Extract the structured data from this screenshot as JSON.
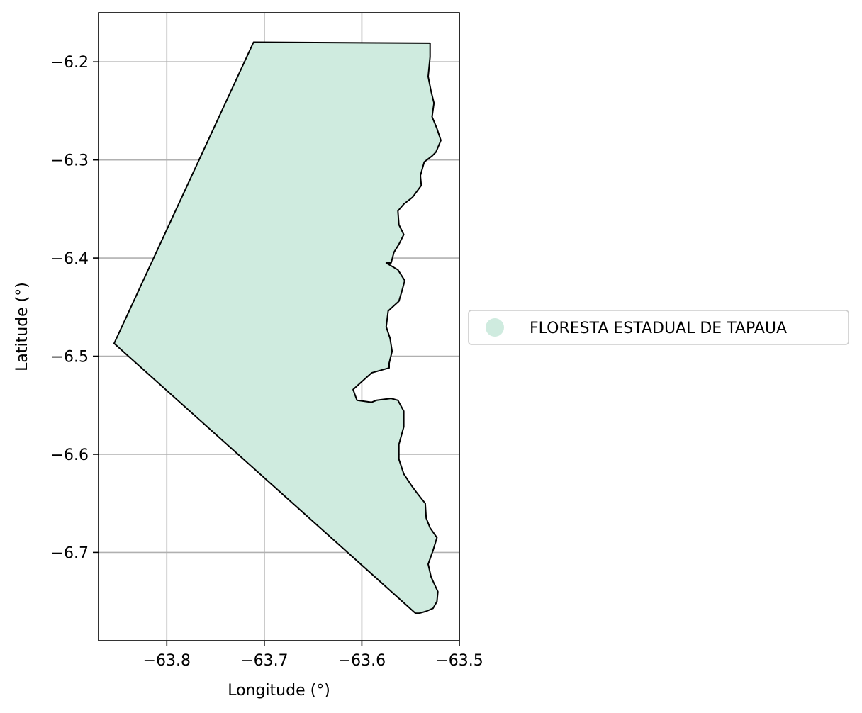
{
  "chart_data": {
    "type": "map",
    "xlabel": "Longitude (°)",
    "ylabel": "Latitude (°)",
    "xlim": [
      -63.87,
      -63.5
    ],
    "ylim": [
      -6.79,
      -6.15
    ],
    "grid": true,
    "x_ticks": [
      {
        "value": -63.8,
        "label": "−63.8"
      },
      {
        "value": -63.7,
        "label": "−63.7"
      },
      {
        "value": -63.6,
        "label": "−63.6"
      },
      {
        "value": -63.5,
        "label": "−63.5"
      }
    ],
    "y_ticks": [
      {
        "value": -6.2,
        "label": "−6.2"
      },
      {
        "value": -6.3,
        "label": "−6.3"
      },
      {
        "value": -6.4,
        "label": "−6.4"
      },
      {
        "value": -6.5,
        "label": "−6.5"
      },
      {
        "value": -6.6,
        "label": "−6.6"
      },
      {
        "value": -6.7,
        "label": "−6.7"
      }
    ],
    "legend_position": "right-center",
    "regions": [
      {
        "name": "FLORESTA ESTADUAL DE TAPAUA",
        "fill": "#cfebdf",
        "stroke": "#000000",
        "boundary": [
          [
            -63.711,
            -6.18
          ],
          [
            -63.53,
            -6.181
          ],
          [
            -63.53,
            -6.195
          ],
          [
            -63.532,
            -6.215
          ],
          [
            -63.529,
            -6.23
          ],
          [
            -63.526,
            -6.242
          ],
          [
            -63.528,
            -6.256
          ],
          [
            -63.523,
            -6.268
          ],
          [
            -63.519,
            -6.28
          ],
          [
            -63.524,
            -6.292
          ],
          [
            -63.528,
            -6.296
          ],
          [
            -63.536,
            -6.302
          ],
          [
            -63.54,
            -6.316
          ],
          [
            -63.539,
            -6.326
          ],
          [
            -63.548,
            -6.338
          ],
          [
            -63.557,
            -6.345
          ],
          [
            -63.563,
            -6.352
          ],
          [
            -63.562,
            -6.366
          ],
          [
            -63.557,
            -6.376
          ],
          [
            -63.562,
            -6.386
          ],
          [
            -63.567,
            -6.394
          ],
          [
            -63.57,
            -6.405
          ],
          [
            -63.575,
            -6.405
          ],
          [
            -63.563,
            -6.412
          ],
          [
            -63.556,
            -6.423
          ],
          [
            -63.559,
            -6.434
          ],
          [
            -63.562,
            -6.444
          ],
          [
            -63.573,
            -6.454
          ],
          [
            -63.575,
            -6.47
          ],
          [
            -63.571,
            -6.482
          ],
          [
            -63.569,
            -6.495
          ],
          [
            -63.572,
            -6.507
          ],
          [
            -63.572,
            -6.512
          ],
          [
            -63.59,
            -6.517
          ],
          [
            -63.6,
            -6.526
          ],
          [
            -63.609,
            -6.534
          ],
          [
            -63.605,
            -6.545
          ],
          [
            -63.59,
            -6.547
          ],
          [
            -63.585,
            -6.545
          ],
          [
            -63.57,
            -6.543
          ],
          [
            -63.563,
            -6.545
          ],
          [
            -63.557,
            -6.556
          ],
          [
            -63.557,
            -6.572
          ],
          [
            -63.562,
            -6.59
          ],
          [
            -63.562,
            -6.605
          ],
          [
            -63.557,
            -6.62
          ],
          [
            -63.549,
            -6.632
          ],
          [
            -63.543,
            -6.64
          ],
          [
            -63.535,
            -6.65
          ],
          [
            -63.534,
            -6.665
          ],
          [
            -63.53,
            -6.675
          ],
          [
            -63.523,
            -6.685
          ],
          [
            -63.527,
            -6.698
          ],
          [
            -63.532,
            -6.712
          ],
          [
            -63.529,
            -6.725
          ],
          [
            -63.522,
            -6.74
          ],
          [
            -63.523,
            -6.75
          ],
          [
            -63.527,
            -6.757
          ],
          [
            -63.534,
            -6.76
          ],
          [
            -63.541,
            -6.762
          ],
          [
            -63.545,
            -6.762
          ],
          [
            -63.854,
            -6.487
          ]
        ]
      }
    ]
  }
}
